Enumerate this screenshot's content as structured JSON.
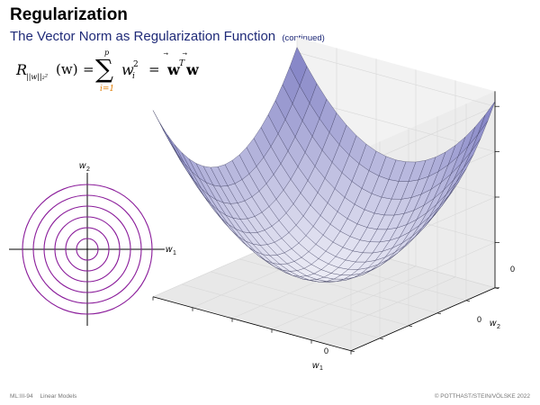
{
  "slide": {
    "title": "Regularization",
    "subtitle": "The Vector Norm as Regularization Function",
    "subtitle_note": "(continued)"
  },
  "formula": {
    "lhs_symbol": "R",
    "lhs_subscript": "||w||₂²",
    "lhs_arg": "(w)",
    "eq1": "=",
    "sum_symbol": "∑",
    "sum_upper": "p",
    "sum_lower": "i=1",
    "term": "w",
    "term_sub": "i",
    "term_sup": "2",
    "eq2": "=",
    "rhs": "w",
    "rhs_sup": "T",
    "rhs2": "w",
    "accent_color": "#e07b00"
  },
  "contour_plot": {
    "axis_x_label": "w",
    "axis_x_sub": "1",
    "axis_y_label": "w",
    "axis_y_sub": "2",
    "num_contours": 6,
    "contour_color": "#8a1b9a"
  },
  "surface_plot": {
    "x_label": "w",
    "x_sub": "1",
    "y_label": "w",
    "y_sub": "2",
    "x_tick": "0",
    "y_tick": "0",
    "z_tick": "0",
    "surface_color": "#8080c0"
  },
  "footer": {
    "left": "ML:III-94",
    "left_topic": "Linear Models",
    "right": "© POTTHAST/STEIN/VÖLSKE 2022"
  }
}
